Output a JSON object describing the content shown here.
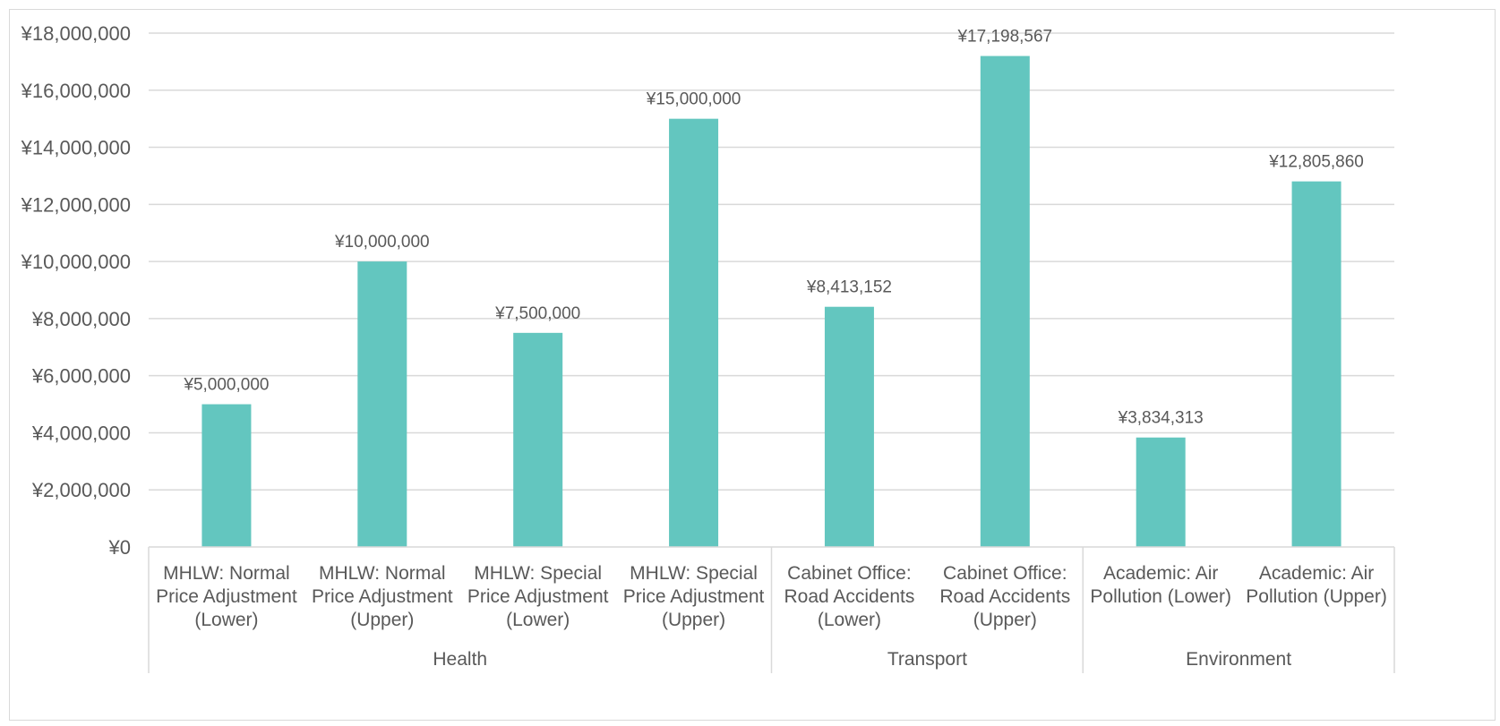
{
  "chart_data": {
    "type": "bar",
    "title": "",
    "xlabel": "",
    "ylabel": "",
    "ylim": [
      0,
      18000000
    ],
    "y_ticks": [
      0,
      2000000,
      4000000,
      6000000,
      8000000,
      10000000,
      12000000,
      14000000,
      16000000,
      18000000
    ],
    "y_tick_labels": [
      "¥0",
      "¥2,000,000",
      "¥4,000,000",
      "¥6,000,000",
      "¥8,000,000",
      "¥10,000,000",
      "¥12,000,000",
      "¥14,000,000",
      "¥16,000,000",
      "¥18,000,000"
    ],
    "grid": true,
    "legend": "none",
    "bar_color": "#63c6bf",
    "categories": [
      "MHLW: Normal Price Adjustment (Lower)",
      "MHLW: Normal Price Adjustment (Upper)",
      "MHLW: Special Price Adjustment (Lower)",
      "MHLW: Special Price Adjustment (Upper)",
      "Cabinet Office: Road Accidents (Lower)",
      "Cabinet Office: Road Accidents (Upper)",
      "Academic: Air Pollution (Lower)",
      "Academic: Air Pollution (Upper)"
    ],
    "category_lines": [
      [
        "MHLW: Normal",
        "Price Adjustment",
        "(Lower)"
      ],
      [
        "MHLW: Normal",
        "Price Adjustment",
        "(Upper)"
      ],
      [
        "MHLW: Special",
        "Price Adjustment",
        "(Lower)"
      ],
      [
        "MHLW: Special",
        "Price Adjustment",
        "(Upper)"
      ],
      [
        "Cabinet Office:",
        "Road Accidents",
        "(Lower)"
      ],
      [
        "Cabinet Office:",
        "Road Accidents",
        "(Upper)"
      ],
      [
        "Academic: Air",
        "Pollution (Lower)"
      ],
      [
        "Academic: Air",
        "Pollution (Upper)"
      ]
    ],
    "values": [
      5000000,
      10000000,
      7500000,
      15000000,
      8413152,
      17198567,
      3834313,
      12805860
    ],
    "data_labels": [
      "¥5,000,000",
      "¥10,000,000",
      "¥7,500,000",
      "¥15,000,000",
      "¥8,413,152",
      "¥17,198,567",
      "¥3,834,313",
      "¥12,805,860"
    ],
    "groups": [
      {
        "label": "Health",
        "start": 0,
        "count": 4
      },
      {
        "label": "Transport",
        "start": 4,
        "count": 2
      },
      {
        "label": "Environment",
        "start": 6,
        "count": 2
      }
    ]
  }
}
